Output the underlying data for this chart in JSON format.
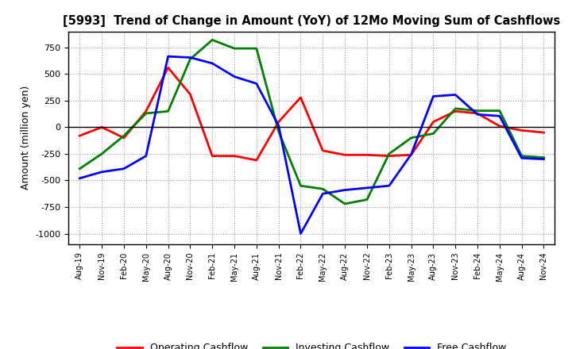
{
  "title": "[5993]  Trend of Change in Amount (YoY) of 12Mo Moving Sum of Cashflows",
  "ylabel": "Amount (million yen)",
  "x_labels": [
    "Aug-19",
    "Nov-19",
    "Feb-20",
    "May-20",
    "Aug-20",
    "Nov-20",
    "Feb-21",
    "May-21",
    "Aug-21",
    "Nov-21",
    "Feb-22",
    "May-22",
    "Aug-22",
    "Nov-22",
    "Feb-23",
    "May-23",
    "Aug-23",
    "Nov-23",
    "Feb-24",
    "May-24",
    "Aug-24",
    "Nov-24"
  ],
  "operating": [
    -80,
    0,
    -100,
    150,
    560,
    310,
    -270,
    -270,
    -310,
    50,
    280,
    -220,
    -260,
    -260,
    -270,
    -260,
    50,
    150,
    130,
    10,
    -30,
    -50
  ],
  "investing": [
    -390,
    -250,
    -80,
    130,
    150,
    640,
    820,
    740,
    740,
    -40,
    -550,
    -580,
    -720,
    -680,
    -250,
    -100,
    -60,
    175,
    155,
    155,
    -270,
    -285
  ],
  "free": [
    -480,
    -420,
    -390,
    -270,
    665,
    655,
    600,
    475,
    410,
    15,
    -1000,
    -625,
    -590,
    -570,
    -550,
    -255,
    290,
    305,
    120,
    105,
    -290,
    -300
  ],
  "operating_color": "#ff0000",
  "investing_color": "#008000",
  "free_color": "#0000ff",
  "ylim": [
    -1100,
    900
  ],
  "yticks": [
    -1000,
    -750,
    -500,
    -250,
    0,
    250,
    500,
    750
  ],
  "background_color": "#ffffff",
  "grid_color": "#808080"
}
